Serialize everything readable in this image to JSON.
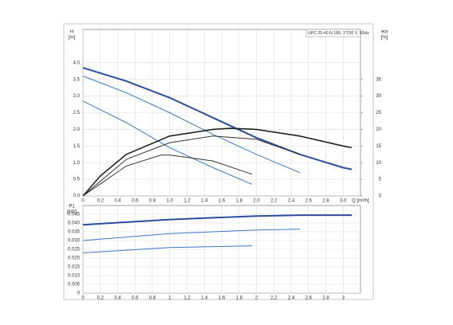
{
  "chart_data": [
    {
      "type": "line",
      "title": "UPC 25-40 N 180, 1*230 V, 50Hz",
      "ylabel": "H",
      "ylabel_unit": "[m]",
      "y2label": "eta",
      "y2label_unit": "[%]",
      "xlabel": "Q [m³/h]",
      "xlim": [
        0,
        3.2
      ],
      "xticks": [
        {
          "value": 0,
          "label": "0"
        },
        0.2,
        0.4,
        0.6,
        0.8,
        {
          "value": 1,
          "label": "1.0"
        },
        1.2,
        1.4,
        1.6,
        1.8,
        {
          "value": 2,
          "label": "2.0"
        },
        2.2,
        2.4,
        2.6,
        2.8,
        {
          "value": 3,
          "label": "3.0"
        }
      ],
      "ylim": [
        0,
        5
      ],
      "yticks": [
        {
          "value": 0,
          "label": "0.0"
        },
        0.5,
        {
          "value": 1,
          "label": "1.0"
        },
        1.5,
        {
          "value": 2,
          "label": "2.0"
        },
        2.5,
        {
          "value": 3,
          "label": "3.0"
        },
        3.5,
        {
          "value": 4,
          "label": "4.0"
        }
      ],
      "y2lim": [
        0,
        50
      ],
      "y2ticks": [
        0,
        5,
        10,
        15,
        20,
        25,
        30,
        35
      ],
      "grid": true,
      "series": [
        {
          "color": "#2a4e9c",
          "width": 2,
          "x": [
            0,
            0.5,
            1.0,
            1.5,
            2.0,
            2.5,
            3.0,
            3.1
          ],
          "values": [
            3.85,
            3.45,
            2.95,
            2.35,
            1.75,
            1.25,
            0.85,
            0.8
          ]
        },
        {
          "color": "#3d74c2",
          "width": 1,
          "x": [
            0,
            0.5,
            1.0,
            1.5,
            2.0,
            2.5
          ],
          "values": [
            3.6,
            3.1,
            2.5,
            1.85,
            1.25,
            0.7
          ]
        },
        {
          "color": "#3d74c2",
          "width": 1,
          "x": [
            0,
            0.5,
            1.0,
            1.5,
            1.95
          ],
          "values": [
            2.85,
            2.2,
            1.45,
            0.85,
            0.35
          ]
        },
        {
          "color": "#222222",
          "width": 1.6,
          "axis": "y2",
          "x": [
            0,
            0.2,
            0.5,
            1.0,
            1.5,
            1.7,
            2.0,
            2.5,
            3.0,
            3.1
          ],
          "values": [
            0,
            6,
            12.5,
            18,
            20,
            20.3,
            20,
            18,
            15,
            14.5
          ]
        },
        {
          "color": "#333333",
          "width": 1,
          "axis": "y2",
          "x": [
            0,
            0.5,
            1.0,
            1.5,
            2.0,
            2.5
          ],
          "values": [
            0,
            11,
            16,
            18,
            17,
            12.5
          ]
        },
        {
          "color": "#333333",
          "width": 1,
          "axis": "y2",
          "x": [
            0,
            0.5,
            0.9,
            1.0,
            1.5,
            1.95
          ],
          "values": [
            0,
            9,
            12.3,
            12.3,
            10.5,
            6.5
          ]
        }
      ]
    },
    {
      "type": "line",
      "ylabel": "P1",
      "ylabel_unit": "[kW]",
      "xlim": [
        0,
        3.2
      ],
      "xticks": [
        0,
        0.2,
        0.4,
        0.6,
        0.8,
        1,
        1.2,
        1.4,
        1.6,
        1.8,
        2,
        2.2,
        2.4,
        2.6,
        2.8,
        3
      ],
      "ylim": [
        0,
        0.05
      ],
      "yticks": [
        0,
        0.005,
        {
          "value": 0.01,
          "label": "0.010"
        },
        0.015,
        {
          "value": 0.02,
          "label": "0.020"
        },
        0.025,
        {
          "value": 0.03,
          "label": "0.030"
        },
        0.035,
        {
          "value": 0.04,
          "label": "0.040"
        },
        0.045
      ],
      "grid": true,
      "series": [
        {
          "color": "#2a4e9c",
          "width": 2,
          "x": [
            0,
            1.0,
            2.0,
            2.5,
            3.1
          ],
          "values": [
            0.039,
            0.042,
            0.044,
            0.0445,
            0.0445
          ]
        },
        {
          "color": "#3d74c2",
          "width": 1,
          "x": [
            0,
            1.0,
            2.0,
            2.5
          ],
          "values": [
            0.03,
            0.034,
            0.036,
            0.0365
          ]
        },
        {
          "color": "#3d74c2",
          "width": 1,
          "x": [
            0,
            1.0,
            1.95
          ],
          "values": [
            0.023,
            0.026,
            0.027
          ]
        }
      ]
    }
  ]
}
